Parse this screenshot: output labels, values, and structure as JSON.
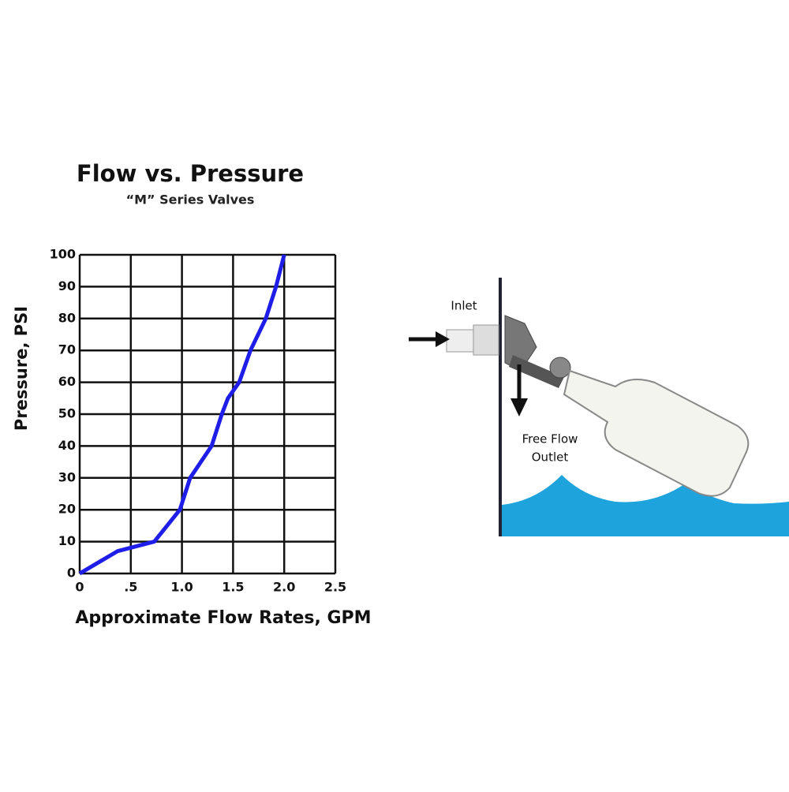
{
  "chart_data": {
    "type": "line",
    "title": "Flow vs. Pressure",
    "subtitle": "“M” Series Valves",
    "x_label": "Approximate Flow Rates, GPM",
    "y_label": "Pressure, PSI",
    "x": [
      0,
      0.37,
      0.73,
      0.98,
      1.08,
      1.29,
      1.39,
      1.45,
      1.56,
      1.67,
      1.82,
      1.92,
      2.0
    ],
    "series": [
      {
        "color": "#1e1ee8",
        "values": [
          0,
          7,
          10,
          20,
          30,
          40,
          50,
          55,
          60,
          70,
          80,
          90,
          100
        ]
      }
    ],
    "xlim": [
      0,
      2.5
    ],
    "ylim": [
      0,
      100
    ],
    "xticks": [
      0,
      {
        "value": 0.5,
        "label": ".5"
      },
      {
        "value": 1,
        "label": "1.0"
      },
      1.5,
      {
        "value": 2,
        "label": "2.0"
      },
      2.5
    ],
    "yticks": [
      0,
      10,
      20,
      30,
      40,
      50,
      60,
      70,
      80,
      90,
      100
    ],
    "grid": true
  },
  "diagram": {
    "inlet": "Inlet",
    "outlet_line1": "Free Flow",
    "outlet_line2": "Outlet"
  }
}
